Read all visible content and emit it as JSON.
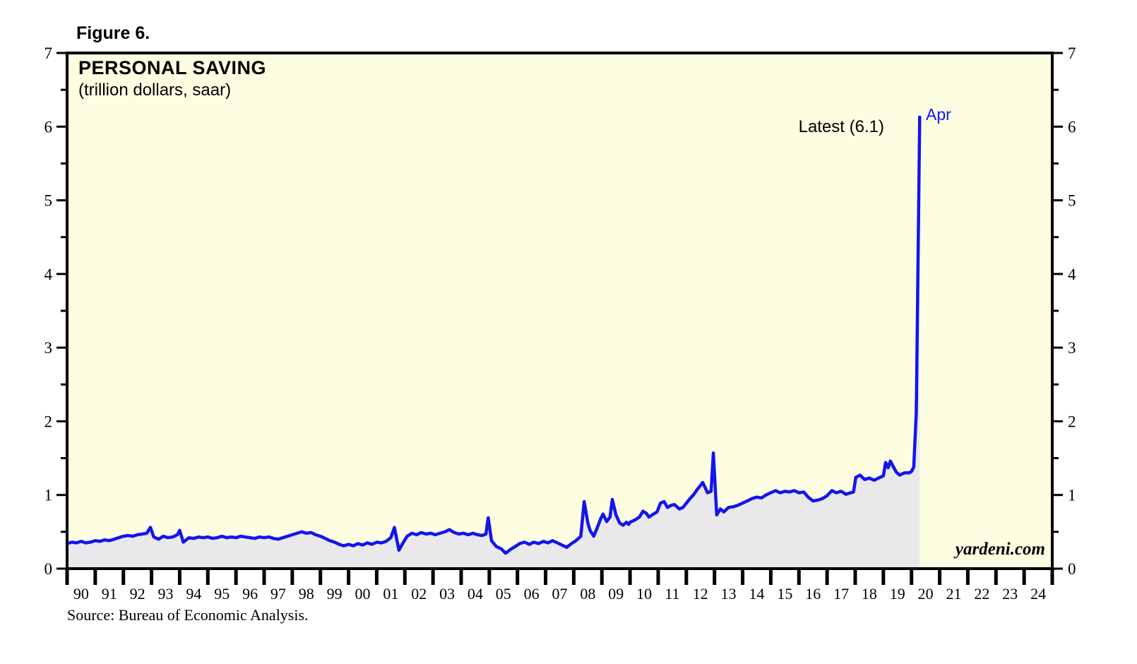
{
  "figure": {
    "label": "Figure 6."
  },
  "chart": {
    "title": "PERSONAL SAVING",
    "subtitle": "(trillion dollars, saar)",
    "latest_label": "Latest (6.1)",
    "latest_point_label": "Apr",
    "watermark": "yardeni.com",
    "source_note": "Source: Bureau of Economic Analysis."
  },
  "colors": {
    "plot_background": "#FDFDE2",
    "area_fill": "#E9E9EB",
    "line": "#1414EE",
    "frame": "#000000",
    "text": "#000000",
    "latest_point_label_color": "#1414EE"
  },
  "chart_data": {
    "type": "line",
    "title": "PERSONAL SAVING",
    "subtitle": "(trillion dollars, saar)",
    "unit": "trillion dollars, seasonally adjusted annual rate",
    "grid": false,
    "legend": "none",
    "ylim": [
      0,
      7
    ],
    "y_tick_labels": [
      "0",
      "1",
      "2",
      "3",
      "4",
      "5",
      "6",
      "7"
    ],
    "y_minor_step": 0.5,
    "x_start_year": 1990,
    "x_end_year": 2025,
    "x_tick_labels": [
      "90",
      "91",
      "92",
      "93",
      "94",
      "95",
      "96",
      "97",
      "98",
      "99",
      "00",
      "01",
      "02",
      "03",
      "04",
      "05",
      "06",
      "07",
      "08",
      "09",
      "10",
      "11",
      "12",
      "13",
      "14",
      "15",
      "16",
      "17",
      "18",
      "19",
      "20",
      "21",
      "22",
      "23",
      "24"
    ],
    "latest": {
      "month": "Apr",
      "value": 6.1
    },
    "series": [
      {
        "name": "Personal Saving",
        "points": [
          [
            1990.0,
            0.34
          ],
          [
            1990.17,
            0.36
          ],
          [
            1990.33,
            0.35
          ],
          [
            1990.5,
            0.37
          ],
          [
            1990.67,
            0.35
          ],
          [
            1990.83,
            0.36
          ],
          [
            1991.0,
            0.38
          ],
          [
            1991.17,
            0.37
          ],
          [
            1991.33,
            0.39
          ],
          [
            1991.5,
            0.38
          ],
          [
            1991.67,
            0.4
          ],
          [
            1991.83,
            0.42
          ],
          [
            1992.0,
            0.44
          ],
          [
            1992.17,
            0.45
          ],
          [
            1992.33,
            0.44
          ],
          [
            1992.5,
            0.46
          ],
          [
            1992.67,
            0.47
          ],
          [
            1992.83,
            0.48
          ],
          [
            1992.96,
            0.56
          ],
          [
            1993.08,
            0.43
          ],
          [
            1993.25,
            0.4
          ],
          [
            1993.42,
            0.44
          ],
          [
            1993.58,
            0.42
          ],
          [
            1993.75,
            0.43
          ],
          [
            1993.92,
            0.46
          ],
          [
            1994.0,
            0.52
          ],
          [
            1994.13,
            0.36
          ],
          [
            1994.33,
            0.42
          ],
          [
            1994.5,
            0.41
          ],
          [
            1994.67,
            0.43
          ],
          [
            1994.83,
            0.42
          ],
          [
            1995.0,
            0.43
          ],
          [
            1995.17,
            0.41
          ],
          [
            1995.33,
            0.42
          ],
          [
            1995.5,
            0.44
          ],
          [
            1995.67,
            0.42
          ],
          [
            1995.83,
            0.43
          ],
          [
            1996.0,
            0.42
          ],
          [
            1996.17,
            0.44
          ],
          [
            1996.33,
            0.43
          ],
          [
            1996.5,
            0.42
          ],
          [
            1996.67,
            0.41
          ],
          [
            1996.83,
            0.43
          ],
          [
            1997.0,
            0.42
          ],
          [
            1997.17,
            0.43
          ],
          [
            1997.33,
            0.41
          ],
          [
            1997.5,
            0.4
          ],
          [
            1997.67,
            0.42
          ],
          [
            1997.83,
            0.44
          ],
          [
            1998.0,
            0.46
          ],
          [
            1998.17,
            0.48
          ],
          [
            1998.33,
            0.5
          ],
          [
            1998.5,
            0.48
          ],
          [
            1998.67,
            0.49
          ],
          [
            1998.83,
            0.46
          ],
          [
            1999.0,
            0.44
          ],
          [
            1999.17,
            0.41
          ],
          [
            1999.33,
            0.38
          ],
          [
            1999.5,
            0.36
          ],
          [
            1999.67,
            0.33
          ],
          [
            1999.83,
            0.31
          ],
          [
            2000.0,
            0.33
          ],
          [
            2000.17,
            0.31
          ],
          [
            2000.33,
            0.34
          ],
          [
            2000.5,
            0.32
          ],
          [
            2000.67,
            0.35
          ],
          [
            2000.83,
            0.33
          ],
          [
            2001.0,
            0.36
          ],
          [
            2001.17,
            0.35
          ],
          [
            2001.33,
            0.37
          ],
          [
            2001.5,
            0.42
          ],
          [
            2001.63,
            0.56
          ],
          [
            2001.79,
            0.25
          ],
          [
            2001.92,
            0.34
          ],
          [
            2002.08,
            0.44
          ],
          [
            2002.25,
            0.48
          ],
          [
            2002.42,
            0.46
          ],
          [
            2002.58,
            0.49
          ],
          [
            2002.75,
            0.47
          ],
          [
            2002.92,
            0.48
          ],
          [
            2003.08,
            0.46
          ],
          [
            2003.25,
            0.48
          ],
          [
            2003.42,
            0.5
          ],
          [
            2003.58,
            0.53
          ],
          [
            2003.75,
            0.49
          ],
          [
            2003.92,
            0.47
          ],
          [
            2004.08,
            0.48
          ],
          [
            2004.25,
            0.46
          ],
          [
            2004.42,
            0.48
          ],
          [
            2004.58,
            0.46
          ],
          [
            2004.75,
            0.45
          ],
          [
            2004.88,
            0.47
          ],
          [
            2004.96,
            0.69
          ],
          [
            2005.08,
            0.38
          ],
          [
            2005.25,
            0.3
          ],
          [
            2005.42,
            0.27
          ],
          [
            2005.58,
            0.21
          ],
          [
            2005.75,
            0.26
          ],
          [
            2005.92,
            0.3
          ],
          [
            2006.08,
            0.34
          ],
          [
            2006.25,
            0.36
          ],
          [
            2006.42,
            0.33
          ],
          [
            2006.58,
            0.36
          ],
          [
            2006.75,
            0.34
          ],
          [
            2006.92,
            0.37
          ],
          [
            2007.08,
            0.35
          ],
          [
            2007.25,
            0.38
          ],
          [
            2007.42,
            0.35
          ],
          [
            2007.58,
            0.32
          ],
          [
            2007.75,
            0.29
          ],
          [
            2007.92,
            0.34
          ],
          [
            2008.08,
            0.38
          ],
          [
            2008.25,
            0.44
          ],
          [
            2008.37,
            0.91
          ],
          [
            2008.5,
            0.62
          ],
          [
            2008.58,
            0.52
          ],
          [
            2008.71,
            0.44
          ],
          [
            2008.83,
            0.55
          ],
          [
            2008.96,
            0.68
          ],
          [
            2009.04,
            0.74
          ],
          [
            2009.17,
            0.64
          ],
          [
            2009.29,
            0.7
          ],
          [
            2009.37,
            0.94
          ],
          [
            2009.5,
            0.73
          ],
          [
            2009.63,
            0.62
          ],
          [
            2009.75,
            0.59
          ],
          [
            2009.87,
            0.63
          ],
          [
            2009.95,
            0.6
          ],
          [
            2010.0,
            0.63
          ],
          [
            2010.17,
            0.66
          ],
          [
            2010.33,
            0.7
          ],
          [
            2010.46,
            0.78
          ],
          [
            2010.58,
            0.75
          ],
          [
            2010.67,
            0.7
          ],
          [
            2010.83,
            0.74
          ],
          [
            2010.96,
            0.77
          ],
          [
            2011.08,
            0.89
          ],
          [
            2011.21,
            0.91
          ],
          [
            2011.33,
            0.83
          ],
          [
            2011.46,
            0.86
          ],
          [
            2011.58,
            0.87
          ],
          [
            2011.75,
            0.81
          ],
          [
            2011.88,
            0.83
          ],
          [
            2012.0,
            0.89
          ],
          [
            2012.13,
            0.95
          ],
          [
            2012.25,
            1.0
          ],
          [
            2012.38,
            1.07
          ],
          [
            2012.5,
            1.13
          ],
          [
            2012.58,
            1.17
          ],
          [
            2012.67,
            1.1
          ],
          [
            2012.75,
            1.03
          ],
          [
            2012.88,
            1.05
          ],
          [
            2012.96,
            1.57
          ],
          [
            2013.08,
            0.73
          ],
          [
            2013.21,
            0.81
          ],
          [
            2013.33,
            0.77
          ],
          [
            2013.5,
            0.83
          ],
          [
            2013.67,
            0.84
          ],
          [
            2013.83,
            0.86
          ],
          [
            2014.0,
            0.89
          ],
          [
            2014.17,
            0.92
          ],
          [
            2014.33,
            0.95
          ],
          [
            2014.5,
            0.97
          ],
          [
            2014.67,
            0.96
          ],
          [
            2014.83,
            1.0
          ],
          [
            2015.0,
            1.03
          ],
          [
            2015.17,
            1.06
          ],
          [
            2015.33,
            1.03
          ],
          [
            2015.5,
            1.05
          ],
          [
            2015.67,
            1.04
          ],
          [
            2015.83,
            1.06
          ],
          [
            2016.0,
            1.03
          ],
          [
            2016.17,
            1.04
          ],
          [
            2016.33,
            0.97
          ],
          [
            2016.5,
            0.92
          ],
          [
            2016.67,
            0.93
          ],
          [
            2016.83,
            0.95
          ],
          [
            2017.0,
            0.99
          ],
          [
            2017.17,
            1.06
          ],
          [
            2017.33,
            1.03
          ],
          [
            2017.5,
            1.05
          ],
          [
            2017.67,
            1.01
          ],
          [
            2017.83,
            1.03
          ],
          [
            2017.94,
            1.04
          ],
          [
            2018.02,
            1.24
          ],
          [
            2018.17,
            1.27
          ],
          [
            2018.33,
            1.21
          ],
          [
            2018.5,
            1.23
          ],
          [
            2018.67,
            1.2
          ],
          [
            2018.83,
            1.23
          ],
          [
            2019.0,
            1.26
          ],
          [
            2019.08,
            1.44
          ],
          [
            2019.17,
            1.37
          ],
          [
            2019.25,
            1.46
          ],
          [
            2019.33,
            1.4
          ],
          [
            2019.46,
            1.31
          ],
          [
            2019.58,
            1.27
          ],
          [
            2019.75,
            1.3
          ],
          [
            2019.92,
            1.3
          ],
          [
            2020.0,
            1.32
          ],
          [
            2020.08,
            1.38
          ],
          [
            2020.17,
            2.13
          ],
          [
            2020.29,
            6.13
          ]
        ]
      }
    ]
  }
}
